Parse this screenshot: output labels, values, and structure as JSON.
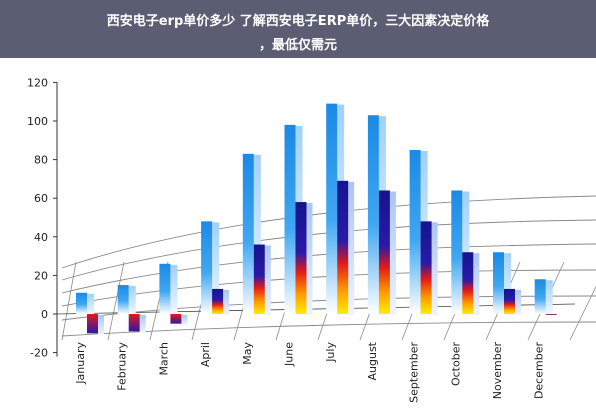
{
  "title": {
    "line1": "西安电子erp单价多少 了解西安电子ERP单价，三大因素决定价格",
    "line2": "，最低仅需元"
  },
  "colors": {
    "title_bg": "#5b5e73",
    "bar_blue": "#1e90e8",
    "bar_dark_blue": "#14148c",
    "bar_red": "#e01a1a",
    "bar_yellow": "#ffee00",
    "grid": "#8a8a8a"
  },
  "chart_data": {
    "type": "bar",
    "title": "",
    "xlabel": "",
    "ylabel": "",
    "ylim": [
      -20,
      120
    ],
    "yticks": [
      -20,
      0,
      20,
      40,
      60,
      80,
      100,
      120
    ],
    "categories": [
      "January",
      "February",
      "March",
      "April",
      "May",
      "June",
      "July",
      "August",
      "September",
      "October",
      "November",
      "December"
    ],
    "series": [
      {
        "values": [
          11,
          15,
          26,
          48,
          83,
          98,
          109,
          103,
          85,
          64,
          32,
          18
        ]
      },
      {
        "values": [
          -10,
          -9,
          -5,
          13,
          36,
          58,
          69,
          64,
          48,
          32,
          13,
          0
        ]
      }
    ],
    "grid": true,
    "legend": "none",
    "style": "3d perspective floor"
  }
}
